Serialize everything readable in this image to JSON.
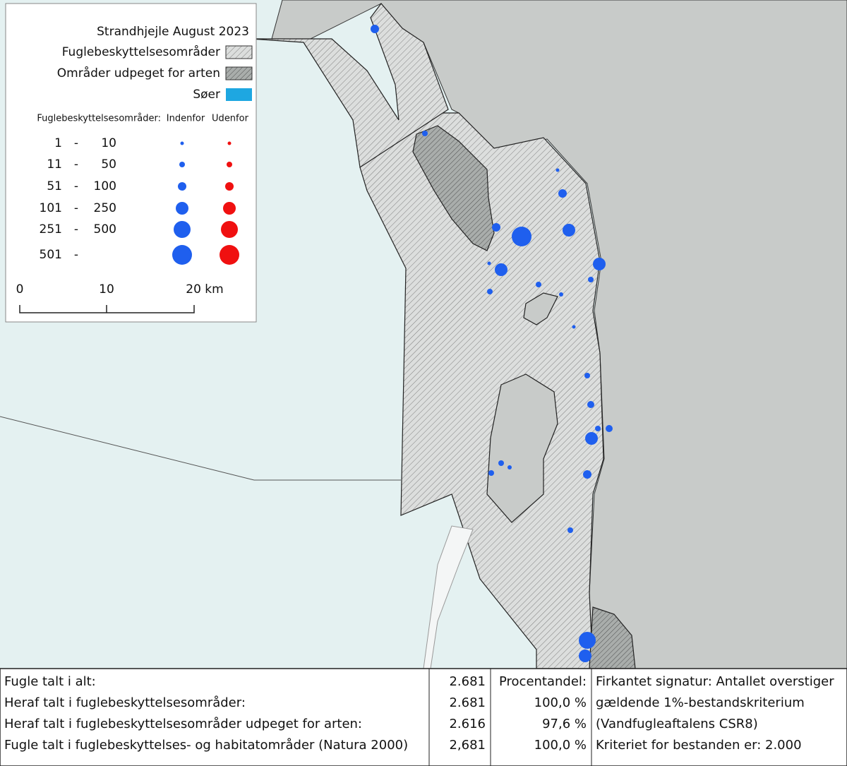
{
  "legend": {
    "title": "Strandhjejle August 2023",
    "items": [
      "Fuglebeskyttelsesområder",
      "Områder udpeget for arten",
      "Søer"
    ],
    "size_header": "Fuglebeskyttelsesområder:",
    "columns": [
      "Indenfor",
      "Udenfor"
    ],
    "classes": [
      [
        "1",
        "-",
        "10"
      ],
      [
        "11",
        "-",
        "50"
      ],
      [
        "51",
        "-",
        "100"
      ],
      [
        "101",
        "-",
        "250"
      ],
      [
        "251",
        "-",
        "500"
      ],
      [
        "501",
        "-"
      ]
    ]
  },
  "scale": {
    "labels": [
      "0",
      "10",
      "20 km"
    ]
  },
  "table": {
    "rows": [
      [
        "Fugle talt i alt:",
        "2.681",
        "Procentandel:",
        "Firkantet signatur: Antallet overstiger"
      ],
      [
        "Heraf talt i fuglebeskyttelsesområder:",
        "2.681",
        "100,0 %",
        "gældende 1%-bestandskriterium"
      ],
      [
        "Heraf talt i fuglebeskyttelsesområder udpeget for arten:",
        "2.616",
        "97,6 %",
        "(Vandfugleaftalens CSR8)"
      ],
      [
        "Fugle talt i fuglebeskyttelses- og habitatområder (Natura 2000)",
        "2,681",
        "100,0 %",
        "Kriteriet for bestanden er: 2.000"
      ]
    ]
  }
}
